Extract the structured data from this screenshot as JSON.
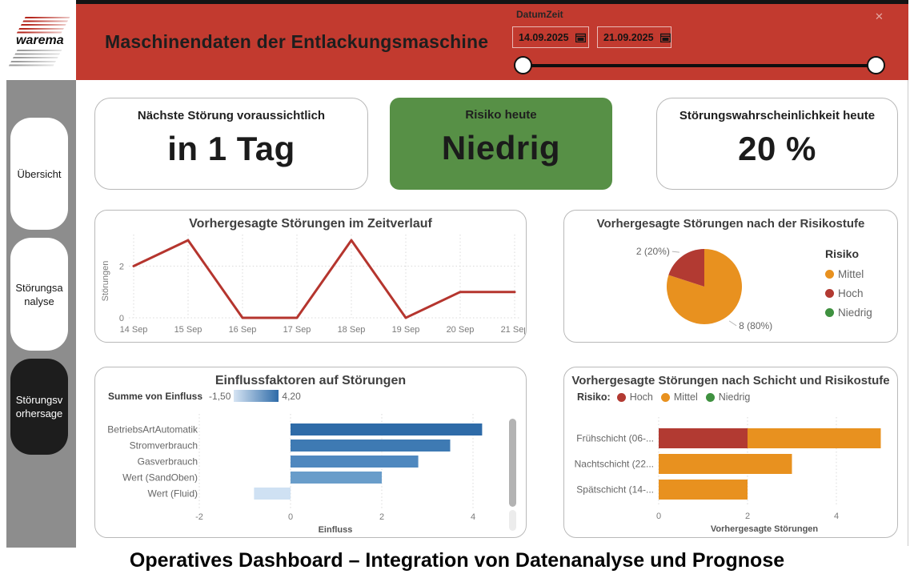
{
  "header": {
    "title": "Maschinendaten der Entlackungsmaschine",
    "logo_text": "warema",
    "clear_icon": "✕",
    "slicer": {
      "label": "DatumZeit",
      "start_date": "14.09.2025",
      "end_date": "21.09.2025"
    }
  },
  "sidebar": {
    "items": [
      {
        "label": "Übersicht",
        "active": false
      },
      {
        "label": "Störungsanalyse",
        "active": false
      },
      {
        "label": "Störungsvorhersage",
        "active": true
      }
    ]
  },
  "kpis": [
    {
      "title": "Nächste Störung voraussichtlich",
      "value": "in 1 Tag",
      "bg": "#ffffff"
    },
    {
      "title": "Risiko heute",
      "value": "Niedrig",
      "bg": "#579046"
    },
    {
      "title": "Störungswahrscheinlichkeit heute",
      "value": "20 %",
      "bg": "#ffffff"
    }
  ],
  "colors": {
    "banner_red": "#c23a2f",
    "risk_hoch_red": "#b23a32",
    "risk_mittel_orange": "#e8911f",
    "risk_niedrig_green": "#3f9140",
    "line_red": "#b5352e",
    "gradient_min_color": "#d6e4f3",
    "gradient_max_color": "#2e6ba8"
  },
  "chart_data": [
    {
      "type": "line",
      "title": "Vorhergesagte Störungen im Zeitverlauf",
      "ylabel": "Störungen",
      "x": [
        "14 Sep",
        "15 Sep",
        "16 Sep",
        "17 Sep",
        "18 Sep",
        "19 Sep",
        "20 Sep",
        "21 Sep"
      ],
      "values": [
        2,
        3,
        0,
        0,
        3,
        0,
        1,
        1
      ],
      "yticks": [
        0,
        2
      ],
      "ylim": [
        0,
        3.3
      ],
      "grid": "dotted",
      "line_color": "#b5352e"
    },
    {
      "type": "pie",
      "title": "Vorhergesagte Störungen nach der Risikostufe",
      "legend_title": "Risiko",
      "legend_position": "right",
      "slices": [
        {
          "name": "Mittel",
          "value": 8,
          "pct": 80,
          "label": "8 (80%)",
          "color": "#e8911f"
        },
        {
          "name": "Hoch",
          "value": 2,
          "pct": 20,
          "label": "2 (20%)",
          "color": "#b23a32"
        },
        {
          "name": "Niedrig",
          "value": 0,
          "pct": 0,
          "label": "",
          "color": "#3f9140"
        }
      ]
    },
    {
      "type": "bar",
      "title": "Einflussfaktoren auf Störungen",
      "legend_label": "Summe von Einfluss",
      "legend_min": "-1,50",
      "legend_max": "4,20",
      "categories": [
        "BetriebsArtAutomatik",
        "Stromverbrauch",
        "Gasverbrauch",
        "Wert (SandOben)",
        "Wert (Fluid)"
      ],
      "values": [
        4.2,
        3.5,
        2.8,
        2.0,
        -0.8
      ],
      "bar_colors": [
        "#2e6ba8",
        "#3e7ab3",
        "#4f88bf",
        "#699dca",
        "#cfe1f3"
      ],
      "xlabel": "Einfluss",
      "xticks": [
        -2,
        0,
        2,
        4
      ],
      "xlim": [
        -2.25,
        5.2
      ],
      "grid": "dotted"
    },
    {
      "type": "stacked_bar",
      "title": "Vorhergesagte Störungen nach Schicht und Risikostufe",
      "legend_label": "Risiko:",
      "categories": [
        "Frühschicht (06-...",
        "Nachtschicht (22...",
        "Spätschicht (14-..."
      ],
      "series": [
        {
          "name": "Hoch",
          "color": "#b23a32",
          "values": [
            2,
            0,
            0
          ]
        },
        {
          "name": "Mittel",
          "color": "#e8911f",
          "values": [
            3,
            3,
            2
          ]
        },
        {
          "name": "Niedrig",
          "color": "#3f9140",
          "values": [
            0,
            0,
            0
          ]
        }
      ],
      "xlabel": "Vorhergesagte Störungen",
      "xticks": [
        0,
        2,
        4
      ],
      "xlim": [
        0,
        5.4
      ],
      "grid": "dotted"
    }
  ],
  "footer": {
    "caption": "Operatives Dashboard – Integration von Datenanalyse und Prognose"
  }
}
